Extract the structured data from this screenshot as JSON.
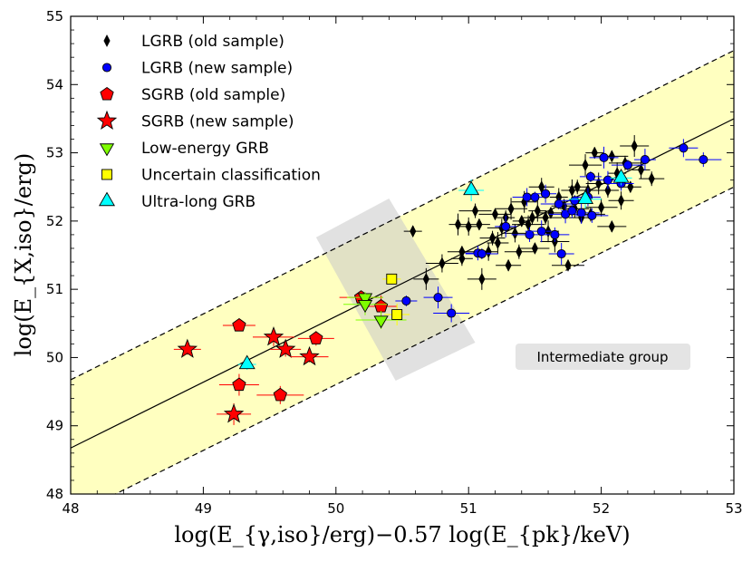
{
  "chart_data": {
    "type": "scatter",
    "title": "",
    "xlabel": "log(E_{γ,iso}/erg)−0.57 log(E_{pk}/keV)",
    "ylabel": "log(E_{X,iso}/erg)",
    "xlim": [
      48,
      53
    ],
    "ylim": [
      48,
      55
    ],
    "xticks": [
      48,
      49,
      50,
      51,
      52,
      53
    ],
    "yticks": [
      48,
      49,
      50,
      51,
      52,
      53,
      54,
      55
    ],
    "xtick_labels": [
      "48",
      "49",
      "50",
      "51",
      "52",
      "53"
    ],
    "ytick_labels": [
      "48",
      "49",
      "50",
      "51",
      "52",
      "53",
      "54",
      "55"
    ],
    "fit_line": {
      "slope": 0.965,
      "intercept": 2.354
    },
    "scatter_band": 1.0,
    "legend": [
      {
        "key": "lgrb_old",
        "label": "LGRB (old sample)",
        "marker": "diamond",
        "color": "#000000"
      },
      {
        "key": "lgrb_new",
        "label": "LGRB (new sample)",
        "marker": "circle",
        "color": "#0000ff"
      },
      {
        "key": "sgrb_old",
        "label": "SGRB (old sample)",
        "marker": "pentagon",
        "color": "#ff0000"
      },
      {
        "key": "sgrb_new",
        "label": "SGRB (new sample)",
        "marker": "star",
        "color": "#ff0000"
      },
      {
        "key": "low_energy",
        "label": "Low-energy GRB",
        "marker": "triangle-down",
        "color": "#7fff00"
      },
      {
        "key": "uncertain",
        "label": "Uncertain classification",
        "marker": "square",
        "color": "#ffff00"
      },
      {
        "key": "ultra_long",
        "label": "Ultra-long GRB",
        "marker": "triangle-up",
        "color": "#00ffff"
      }
    ],
    "annotation": "Intermediate group",
    "intermediate_region": [
      [
        49.85,
        51.76
      ],
      [
        50.4,
        52.33
      ],
      [
        51.05,
        50.22
      ],
      [
        50.45,
        49.66
      ]
    ],
    "series": [
      {
        "key": "lgrb_old",
        "points": [
          [
            50.58,
            51.85
          ],
          [
            50.68,
            51.15
          ],
          [
            50.8,
            51.38
          ],
          [
            50.95,
            51.45
          ],
          [
            50.95,
            51.55
          ],
          [
            50.92,
            51.95
          ],
          [
            51.0,
            51.92
          ],
          [
            51.05,
            52.15
          ],
          [
            51.08,
            51.95
          ],
          [
            51.1,
            51.15
          ],
          [
            51.15,
            51.55
          ],
          [
            51.18,
            51.75
          ],
          [
            51.2,
            52.1
          ],
          [
            51.22,
            51.68
          ],
          [
            51.25,
            51.9
          ],
          [
            51.28,
            52.05
          ],
          [
            51.3,
            51.35
          ],
          [
            51.32,
            52.18
          ],
          [
            51.35,
            51.82
          ],
          [
            51.38,
            51.55
          ],
          [
            51.4,
            52.0
          ],
          [
            51.42,
            52.28
          ],
          [
            51.45,
            51.95
          ],
          [
            51.48,
            52.05
          ],
          [
            51.5,
            51.6
          ],
          [
            51.52,
            52.15
          ],
          [
            51.55,
            52.5
          ],
          [
            51.58,
            52.05
          ],
          [
            51.62,
            52.12
          ],
          [
            51.65,
            51.7
          ],
          [
            51.68,
            52.35
          ],
          [
            51.72,
            52.22
          ],
          [
            51.75,
            51.35
          ],
          [
            51.78,
            52.45
          ],
          [
            51.8,
            52.18
          ],
          [
            51.82,
            52.5
          ],
          [
            51.85,
            52.05
          ],
          [
            51.88,
            52.82
          ],
          [
            51.9,
            52.45
          ],
          [
            51.92,
            52.1
          ],
          [
            51.95,
            53.0
          ],
          [
            51.98,
            52.55
          ],
          [
            52.0,
            52.2
          ],
          [
            52.05,
            52.45
          ],
          [
            52.08,
            51.92
          ],
          [
            52.12,
            52.7
          ],
          [
            52.15,
            52.3
          ],
          [
            52.18,
            52.85
          ],
          [
            52.22,
            52.5
          ],
          [
            52.25,
            53.1
          ],
          [
            52.3,
            52.75
          ],
          [
            52.38,
            52.62
          ],
          [
            52.08,
            52.95
          ],
          [
            51.6,
            51.85
          ]
        ]
      },
      {
        "key": "lgrb_new",
        "points": [
          [
            50.53,
            50.83
          ],
          [
            50.77,
            50.88
          ],
          [
            50.87,
            50.65
          ],
          [
            51.07,
            51.53
          ],
          [
            51.1,
            51.52
          ],
          [
            51.28,
            51.92
          ],
          [
            51.44,
            52.35
          ],
          [
            51.46,
            51.8
          ],
          [
            51.5,
            52.35
          ],
          [
            51.55,
            51.85
          ],
          [
            51.58,
            52.4
          ],
          [
            51.65,
            51.8
          ],
          [
            51.68,
            52.25
          ],
          [
            51.7,
            51.52
          ],
          [
            51.73,
            52.1
          ],
          [
            51.78,
            52.15
          ],
          [
            51.8,
            52.3
          ],
          [
            51.85,
            52.12
          ],
          [
            51.9,
            52.35
          ],
          [
            51.93,
            52.08
          ],
          [
            51.92,
            52.65
          ],
          [
            52.02,
            52.93
          ],
          [
            52.05,
            52.6
          ],
          [
            52.15,
            52.55
          ],
          [
            52.2,
            52.82
          ],
          [
            52.33,
            52.9
          ],
          [
            52.62,
            53.07
          ],
          [
            52.77,
            52.9
          ]
        ]
      },
      {
        "key": "sgrb_old",
        "points": [
          [
            49.27,
            50.47
          ],
          [
            49.27,
            49.6
          ],
          [
            49.58,
            49.45
          ],
          [
            49.85,
            50.28
          ],
          [
            50.19,
            50.88
          ],
          [
            50.34,
            50.75
          ]
        ]
      },
      {
        "key": "sgrb_new",
        "points": [
          [
            48.88,
            50.12
          ],
          [
            49.23,
            49.17
          ],
          [
            49.53,
            50.3
          ],
          [
            49.62,
            50.12
          ],
          [
            49.8,
            50.01
          ]
        ]
      },
      {
        "key": "low_energy",
        "points": [
          [
            50.22,
            50.88
          ],
          [
            50.22,
            50.78
          ],
          [
            50.34,
            50.55
          ]
        ]
      },
      {
        "key": "uncertain",
        "points": [
          [
            50.42,
            51.15
          ],
          [
            50.46,
            50.63
          ]
        ]
      },
      {
        "key": "ultra_long",
        "points": [
          [
            49.33,
            49.9
          ],
          [
            51.02,
            52.45
          ],
          [
            51.88,
            52.32
          ],
          [
            52.15,
            52.63
          ]
        ]
      }
    ]
  }
}
